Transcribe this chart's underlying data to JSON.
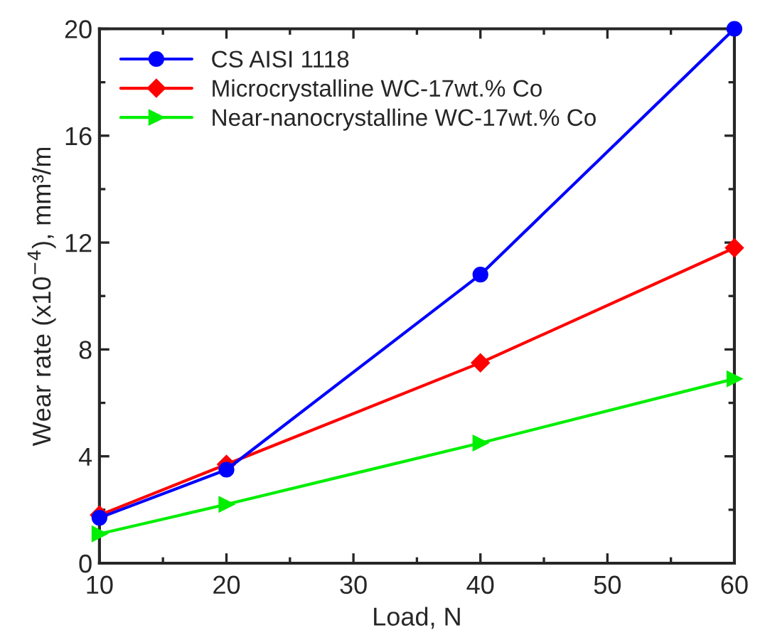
{
  "chart_data": {
    "type": "line",
    "xlabel": "Load, N",
    "ylabel": "Wear rate (x10$^{−4}$), mm³/m",
    "x": [
      10,
      20,
      40,
      60
    ],
    "series": [
      {
        "name": "CS AISI 1118",
        "color": "#0000ff",
        "marker": "circle",
        "values": [
          1.7,
          3.5,
          10.8,
          20
        ]
      },
      {
        "name": "Microcrystalline WC-17wt.% Co",
        "color": "#ff0000",
        "marker": "diamond",
        "values": [
          1.8,
          3.7,
          7.5,
          11.8
        ]
      },
      {
        "name": "Near-nanocrystalline WC-17wt.% Co",
        "color": "#00ee00",
        "marker": "triangle",
        "values": [
          1.1,
          2.2,
          4.5,
          6.9
        ]
      }
    ],
    "xlim": [
      10,
      60
    ],
    "xticks": [
      10,
      20,
      30,
      40,
      50,
      60
    ],
    "ylim": [
      0,
      20
    ],
    "yticks": [
      0,
      4,
      8,
      12,
      16,
      20
    ],
    "grid": false,
    "legend": "top left",
    "line_style": "solid"
  }
}
